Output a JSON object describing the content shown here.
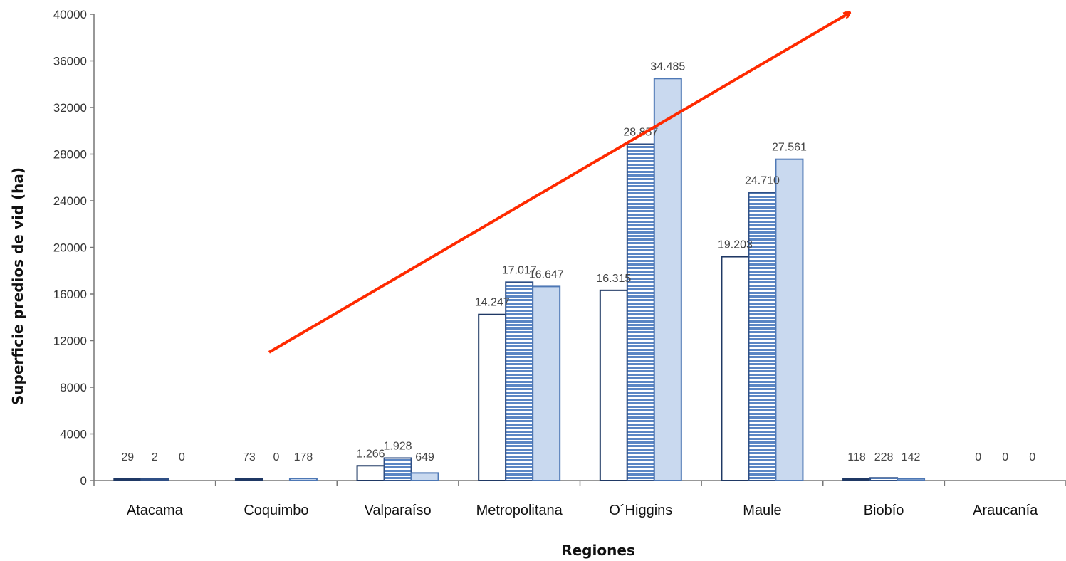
{
  "chart_data": {
    "type": "bar",
    "title": "",
    "xlabel": "Regiones",
    "ylabel": "Superficie predios de vid (ha)",
    "ylim": [
      0,
      40000
    ],
    "yticks": [
      0,
      4000,
      8000,
      12000,
      16000,
      20000,
      24000,
      28000,
      32000,
      36000,
      40000
    ],
    "ytick_labels": [
      "0",
      "4000",
      "8000",
      "12000",
      "16000",
      "20000",
      "24000",
      "28000",
      "32000",
      "36000",
      "40000"
    ],
    "grid": false,
    "legend": "none",
    "categories": [
      "Atacama",
      "Coquimbo",
      "Valparaíso",
      "Metropolitana",
      "O´Higgins",
      "Maule",
      "Biobío",
      "Araucanía"
    ],
    "series": [
      {
        "values": [
          29,
          73,
          1266,
          14247,
          16315,
          19203,
          118,
          0
        ],
        "labels": [
          "29",
          "73",
          "1.266",
          "14.247",
          "16.315",
          "19.203",
          "118",
          "0"
        ],
        "fill": "#ffffff",
        "stroke": "#1f3864",
        "pattern": "none"
      },
      {
        "values": [
          2,
          0,
          1928,
          17017,
          28857,
          24710,
          228,
          0
        ],
        "labels": [
          "2",
          "0",
          "1.928",
          "17.017",
          "28.857",
          "24.710",
          "228",
          "0"
        ],
        "fill": "#5b86c4",
        "stroke": "#2f4f85",
        "pattern": "horizontal-stripes"
      },
      {
        "values": [
          0,
          178,
          649,
          16647,
          34485,
          27561,
          142,
          0
        ],
        "labels": [
          "0",
          "178",
          "649",
          "16.647",
          "34.485",
          "27.561",
          "142",
          "0"
        ],
        "fill": "#c9d9ef",
        "stroke": "#4e78b5",
        "pattern": "none"
      }
    ],
    "annotations": [
      {
        "type": "arrow",
        "color": "#ff2a00",
        "from": [
          "Coquimbo",
          11000
        ],
        "to": [
          "Biobío",
          40000
        ]
      }
    ]
  }
}
